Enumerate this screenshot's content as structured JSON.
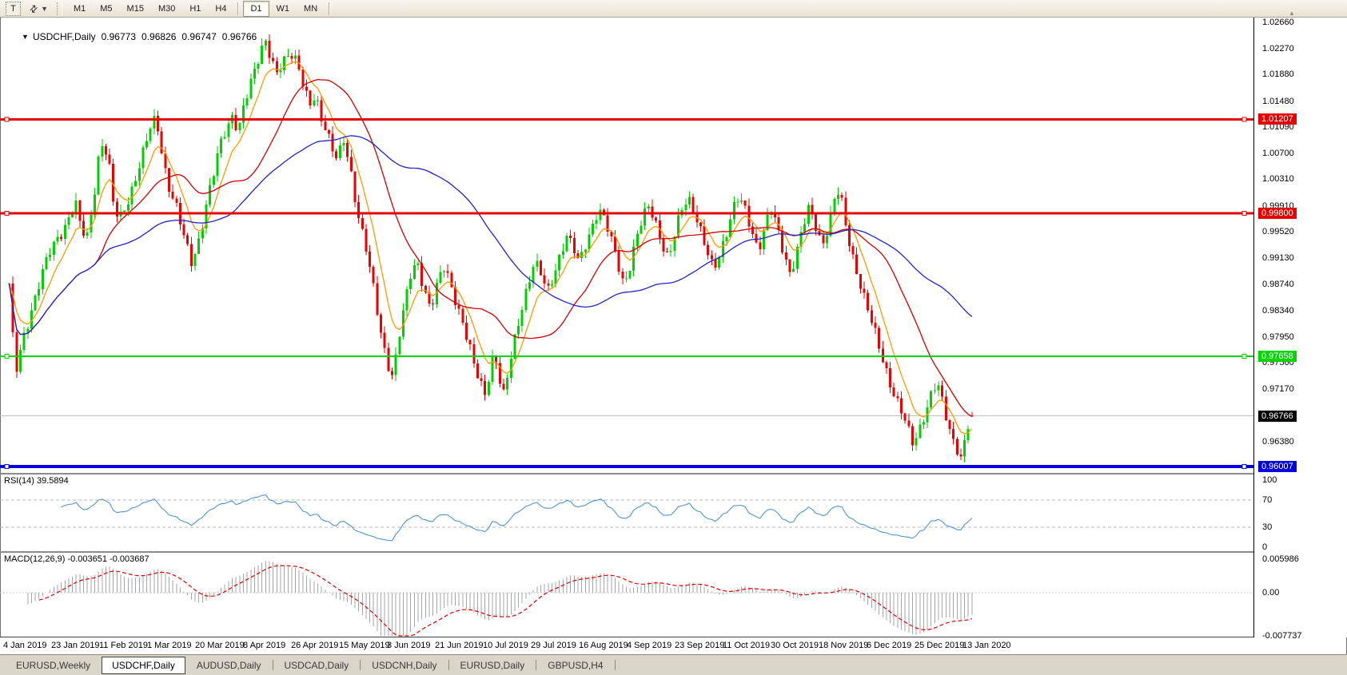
{
  "toolbar": {
    "text_tool_label": "T",
    "arrows_icon": "⇄",
    "caret_icon": "▼",
    "scroll_up_icon": "▲",
    "timeframes": [
      "M1",
      "M5",
      "M15",
      "M30",
      "H1",
      "H4",
      "D1",
      "W1",
      "MN"
    ],
    "active_timeframe": "D1"
  },
  "chart": {
    "expander_icon": "▼",
    "title": "USDCHF,Daily",
    "ohlc": {
      "open": "0.96773",
      "high": "0.96826",
      "low": "0.96747",
      "close": "0.96766"
    }
  },
  "price_axis": {
    "ticks": [
      "1.02660",
      "1.02270",
      "1.01880",
      "1.01480",
      "1.01090",
      "1.00700",
      "1.00310",
      "0.99910",
      "0.99520",
      "0.99130",
      "0.98740",
      "0.98340",
      "0.97950",
      "0.97560",
      "0.97170",
      "0.96380"
    ],
    "line_labels": [
      {
        "text": "1.01207",
        "bg": "#e60000",
        "fg": "#ffffff"
      },
      {
        "text": "0.99800",
        "bg": "#e60000",
        "fg": "#ffffff"
      },
      {
        "text": "0.97658",
        "bg": "#00d500",
        "fg": "#ffffff"
      },
      {
        "text": "0.96766",
        "bg": "#000000",
        "fg": "#ffffff"
      },
      {
        "text": "0.96007",
        "bg": "#0000e0",
        "fg": "#ffffff"
      }
    ]
  },
  "rsi_panel": {
    "label": "RSI(14) 39.5894",
    "ticks": [
      "100",
      "70",
      "30",
      "0"
    ],
    "tick_values": [
      100,
      70,
      30,
      0
    ]
  },
  "macd_panel": {
    "label": "MACD(12,26,9) -0.003651 -0.003687",
    "ticks": [
      "0.005986",
      "0.00",
      "-0.007737"
    ],
    "tick_values": [
      0.005986,
      0,
      -0.007737
    ]
  },
  "date_axis": [
    "4 Jan 2019",
    "23 Jan 2019",
    "11 Feb 2019",
    "1 Mar 2019",
    "20 Mar 2019",
    "8 Apr 2019",
    "26 Apr 2019",
    "15 May 2019",
    "3 Jun 2019",
    "21 Jun 2019",
    "10 Jul 2019",
    "29 Jul 2019",
    "16 Aug 2019",
    "4 Sep 2019",
    "23 Sep 2019",
    "11 Oct 2019",
    "30 Oct 2019",
    "18 Nov 2019",
    "6 Dec 2019",
    "25 Dec 2019",
    "13 Jan 2020"
  ],
  "tabs": [
    {
      "label": "EURUSD,Weekly",
      "active": false
    },
    {
      "label": "USDCHF,Daily",
      "active": true
    },
    {
      "label": "AUDUSD,Daily",
      "active": false
    },
    {
      "label": "USDCAD,Daily",
      "active": false
    },
    {
      "label": "USDCNH,Daily",
      "active": false
    },
    {
      "label": "EURUSD,Daily",
      "active": false
    },
    {
      "label": "GBPUSD,H4",
      "active": false
    }
  ],
  "chart_data": {
    "type": "candlestick",
    "symbol": "USDCHF",
    "timeframe": "Daily",
    "last_ohlc": {
      "open": 0.96773,
      "high": 0.96826,
      "low": 0.96747,
      "close": 0.96766
    },
    "current_price": 0.96766,
    "ylim": [
      0.959,
      1.0285
    ],
    "y_ticks": [
      1.0266,
      1.0227,
      1.0188,
      1.0148,
      1.0109,
      1.007,
      1.0031,
      0.9991,
      0.9952,
      0.9913,
      0.9874,
      0.9834,
      0.9795,
      0.9756,
      0.9717,
      0.9638
    ],
    "horizontal_levels": [
      {
        "price": 1.01207,
        "color": "#e60000",
        "width": 3
      },
      {
        "price": 0.998,
        "color": "#e60000",
        "width": 3
      },
      {
        "price": 0.97658,
        "color": "#00d500",
        "width": 2
      },
      {
        "price": 0.96007,
        "color": "#0000e0",
        "width": 4
      }
    ],
    "moving_averages": [
      {
        "type": "EMA",
        "period": 8,
        "color": "#ff9900"
      },
      {
        "type": "SMA",
        "period": 24,
        "color": "#d00000"
      },
      {
        "type": "SMA",
        "period": 60,
        "color": "#2323c8"
      }
    ],
    "rsi": {
      "period": 14,
      "current": 39.5894,
      "levels": [
        70,
        30
      ],
      "color": "#4f94d4"
    },
    "macd": {
      "fast": 12,
      "slow": 26,
      "signal": 9,
      "current": -0.003651,
      "current_signal": -0.003687,
      "axis_range": [
        -0.007737,
        0.005986
      ],
      "histogram_color": "#a6a6a6",
      "signal_color": "#e00000"
    },
    "price_path": [
      [
        10,
        0.9875
      ],
      [
        14,
        0.98
      ],
      [
        19,
        0.9742
      ],
      [
        26,
        0.9782
      ],
      [
        38,
        0.9838
      ],
      [
        50,
        0.9888
      ],
      [
        62,
        0.9922
      ],
      [
        74,
        0.9948
      ],
      [
        84,
        0.9975
      ],
      [
        93,
        0.9998
      ],
      [
        100,
        0.9952
      ],
      [
        108,
        0.9942
      ],
      [
        115,
        0.9998
      ],
      [
        122,
        1.0068
      ],
      [
        128,
        1.0092
      ],
      [
        135,
        1.0052
      ],
      [
        141,
        0.9985
      ],
      [
        148,
        0.9968
      ],
      [
        157,
        0.9995
      ],
      [
        168,
        1.0035
      ],
      [
        178,
        1.0072
      ],
      [
        188,
        1.011
      ],
      [
        194,
        1.0122
      ],
      [
        200,
        1.008
      ],
      [
        208,
        1.0028
      ],
      [
        218,
        0.9992
      ],
      [
        228,
        0.9945
      ],
      [
        238,
        0.9908
      ],
      [
        246,
        0.9935
      ],
      [
        255,
        0.9985
      ],
      [
        264,
        1.0028
      ],
      [
        273,
        1.0078
      ],
      [
        281,
        1.0108
      ],
      [
        289,
        1.0128
      ],
      [
        297,
        1.0105
      ],
      [
        304,
        1.014
      ],
      [
        311,
        1.0168
      ],
      [
        318,
        1.0198
      ],
      [
        325,
        1.0228
      ],
      [
        331,
        1.0242
      ],
      [
        337,
        1.0215
      ],
      [
        344,
        1.0185
      ],
      [
        351,
        1.0198
      ],
      [
        358,
        1.0215
      ],
      [
        365,
        1.0222
      ],
      [
        372,
        1.0205
      ],
      [
        379,
        1.0168
      ],
      [
        386,
        1.0138
      ],
      [
        393,
        1.0152
      ],
      [
        400,
        1.0122
      ],
      [
        407,
        1.0108
      ],
      [
        414,
        1.0082
      ],
      [
        421,
        1.0062
      ],
      [
        428,
        1.0088
      ],
      [
        435,
        1.0052
      ],
      [
        442,
        1.0005
      ],
      [
        449,
        0.9968
      ],
      [
        456,
        0.9935
      ],
      [
        463,
        0.9888
      ],
      [
        470,
        0.9832
      ],
      [
        477,
        0.9782
      ],
      [
        484,
        0.9752
      ],
      [
        490,
        0.9738
      ],
      [
        497,
        0.9798
      ],
      [
        505,
        0.9845
      ],
      [
        513,
        0.9888
      ],
      [
        521,
        0.9902
      ],
      [
        529,
        0.9868
      ],
      [
        537,
        0.9842
      ],
      [
        545,
        0.9872
      ],
      [
        553,
        0.9898
      ],
      [
        561,
        0.9875
      ],
      [
        569,
        0.9848
      ],
      [
        577,
        0.9822
      ],
      [
        585,
        0.9785
      ],
      [
        592,
        0.9748
      ],
      [
        599,
        0.9722
      ],
      [
        605,
        0.9708
      ],
      [
        611,
        0.9742
      ],
      [
        617,
        0.9778
      ],
      [
        623,
        0.9735
      ],
      [
        629,
        0.9705
      ],
      [
        635,
        0.9745
      ],
      [
        643,
        0.9792
      ],
      [
        651,
        0.9838
      ],
      [
        659,
        0.9878
      ],
      [
        667,
        0.9908
      ],
      [
        675,
        0.9888
      ],
      [
        683,
        0.9858
      ],
      [
        691,
        0.9888
      ],
      [
        699,
        0.992
      ],
      [
        707,
        0.9948
      ],
      [
        715,
        0.9928
      ],
      [
        723,
        0.9902
      ],
      [
        731,
        0.9935
      ],
      [
        739,
        0.9962
      ],
      [
        747,
        0.9988
      ],
      [
        755,
        0.9968
      ],
      [
        763,
        0.9938
      ],
      [
        771,
        0.9908
      ],
      [
        779,
        0.9875
      ],
      [
        787,
        0.9905
      ],
      [
        795,
        0.9942
      ],
      [
        803,
        0.9972
      ],
      [
        811,
        0.9992
      ],
      [
        819,
        0.9968
      ],
      [
        827,
        0.9935
      ],
      [
        835,
        0.9908
      ],
      [
        843,
        0.9948
      ],
      [
        851,
        0.9985
      ],
      [
        859,
        1.0008
      ],
      [
        867,
        0.9985
      ],
      [
        875,
        0.9952
      ],
      [
        883,
        0.9918
      ],
      [
        891,
        0.9895
      ],
      [
        899,
        0.9922
      ],
      [
        907,
        0.9952
      ],
      [
        915,
        0.9985
      ],
      [
        923,
        1.0002
      ],
      [
        931,
        0.9982
      ],
      [
        939,
        0.9955
      ],
      [
        947,
        0.9928
      ],
      [
        955,
        0.9958
      ],
      [
        963,
        0.9985
      ],
      [
        971,
        0.9955
      ],
      [
        979,
        0.9922
      ],
      [
        987,
        0.9892
      ],
      [
        995,
        0.9922
      ],
      [
        1003,
        0.9958
      ],
      [
        1011,
        0.9988
      ],
      [
        1019,
        0.9962
      ],
      [
        1027,
        0.9935
      ],
      [
        1035,
        0.9962
      ],
      [
        1043,
        1.0002
      ],
      [
        1049,
        1.0012
      ],
      [
        1055,
        0.9968
      ],
      [
        1063,
        0.9928
      ],
      [
        1071,
        0.9892
      ],
      [
        1079,
        0.9855
      ],
      [
        1087,
        0.9822
      ],
      [
        1095,
        0.9792
      ],
      [
        1103,
        0.9762
      ],
      [
        1111,
        0.9732
      ],
      [
        1119,
        0.9702
      ],
      [
        1127,
        0.9678
      ],
      [
        1135,
        0.9652
      ],
      [
        1141,
        0.9635
      ],
      [
        1147,
        0.9655
      ],
      [
        1153,
        0.9675
      ],
      [
        1159,
        0.9692
      ],
      [
        1165,
        0.9712
      ],
      [
        1171,
        0.9722
      ],
      [
        1177,
        0.9698
      ],
      [
        1183,
        0.9672
      ],
      [
        1189,
        0.9648
      ],
      [
        1195,
        0.9632
      ],
      [
        1201,
        0.9612
      ],
      [
        1207,
        0.9645
      ],
      [
        1213,
        0.9677
      ]
    ]
  }
}
